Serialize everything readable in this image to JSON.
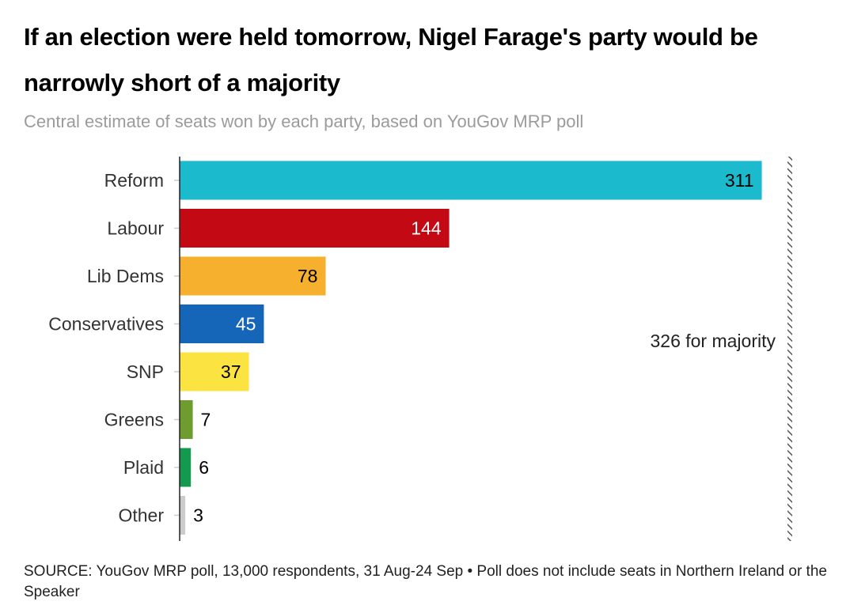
{
  "title": "If an election were held tomorrow, Nigel Farage's party would be narrowly short of a majority",
  "subtitle": "Central estimate of seats won by each party, based on YouGov MRP poll",
  "source": "SOURCE: YouGov MRP poll, 13,000 respondents, 31 Aug-24 Sep • Poll does not include seats in Northern Ireland or the Speaker",
  "chart_data": {
    "type": "bar",
    "orientation": "horizontal",
    "categories": [
      "Reform",
      "Labour",
      "Lib Dems",
      "Conservatives",
      "SNP",
      "Greens",
      "Plaid",
      "Other"
    ],
    "values": [
      311,
      144,
      78,
      45,
      37,
      7,
      6,
      3
    ],
    "colors": [
      "#1bbacc",
      "#c30a14",
      "#f6b02e",
      "#1565b8",
      "#fbe442",
      "#6e9c2f",
      "#149a4e",
      "#cccccc"
    ],
    "label_colors": [
      "#000000",
      "#ffffff",
      "#000000",
      "#ffffff",
      "#000000",
      "#000000",
      "#000000",
      "#000000"
    ],
    "xlim": [
      0,
      326
    ],
    "grid": false,
    "reference_line": {
      "value": 326,
      "label": "326 for majority"
    }
  }
}
